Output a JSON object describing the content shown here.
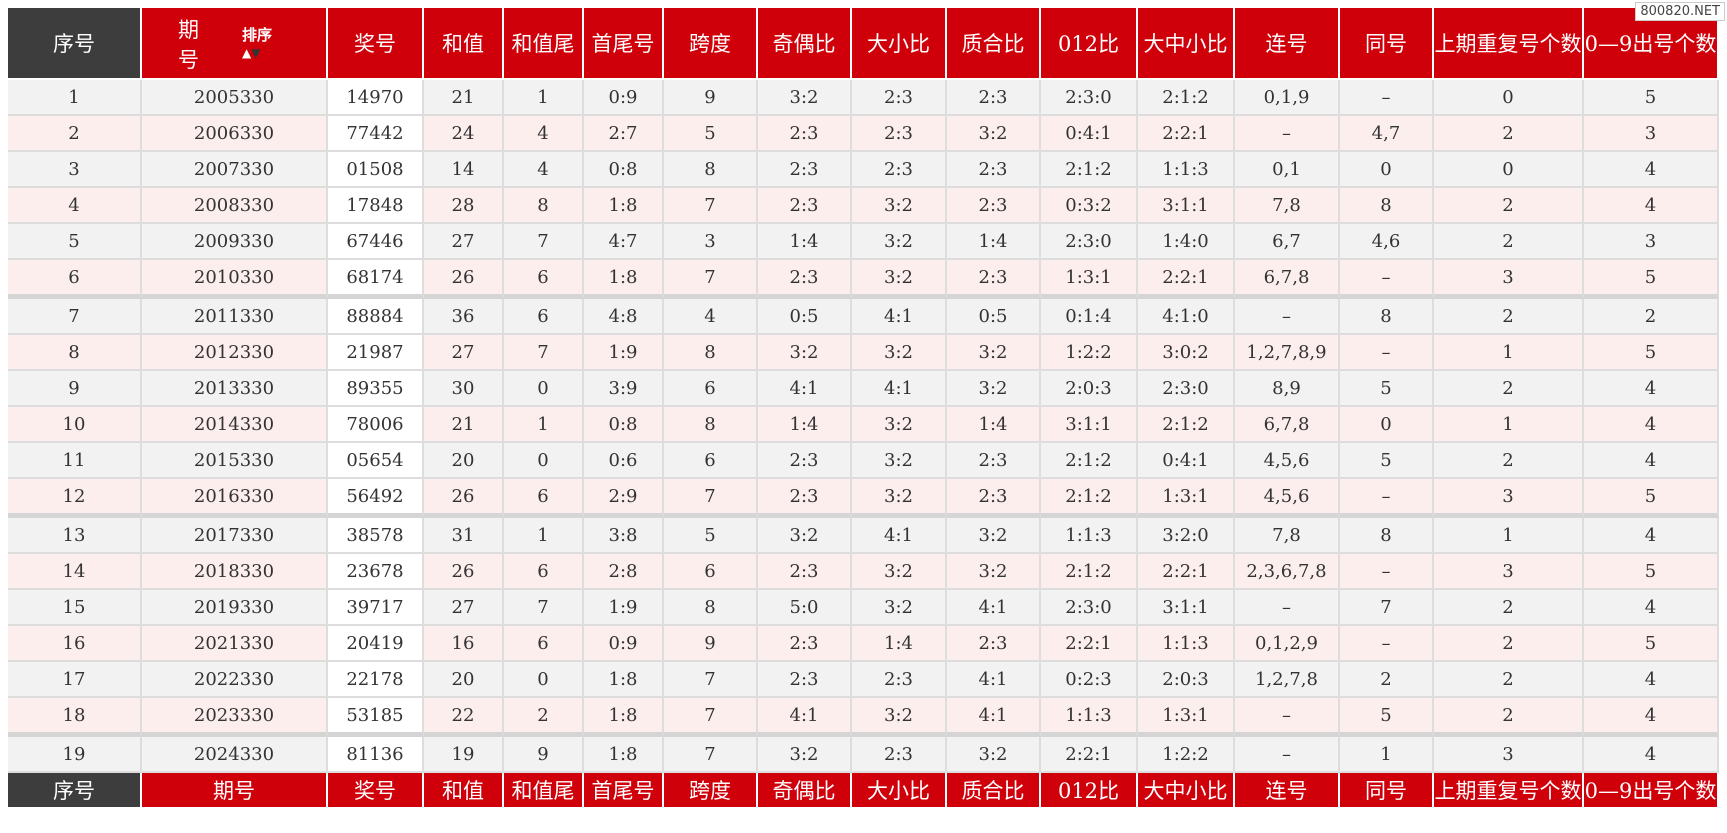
{
  "watermark": "800820.NET",
  "header": {
    "index": "序号",
    "period_line1": "期",
    "period_line2": "号",
    "sort_label": "排序",
    "sort_up": "▲",
    "sort_down": "▼",
    "prize": "奖号",
    "sum": "和值",
    "sum_tail": "和值尾",
    "first_last": "首尾号",
    "span": "跨度",
    "odd_even": "奇偶比",
    "big_small": "大小比",
    "prime_composite": "质合比",
    "r012": "012比",
    "big_mid_small": "大中小比",
    "consecutive": "连号",
    "same": "同号",
    "repeat_prev": "上期重复号个数",
    "zero_nine": "0—9出号个数"
  },
  "footer": {
    "index": "序号",
    "period": "期号",
    "prize": "奖号",
    "sum": "和值",
    "sum_tail": "和值尾",
    "first_last": "首尾号",
    "span": "跨度",
    "odd_even": "奇偶比",
    "big_small": "大小比",
    "prime_composite": "质合比",
    "r012": "012比",
    "big_mid_small": "大中小比",
    "consecutive": "连号",
    "same": "同号",
    "repeat_prev": "上期重复号个数",
    "zero_nine": "0—9出号个数"
  },
  "rows": [
    [
      "1",
      "2005330",
      "14970",
      "21",
      "1",
      "0:9",
      "9",
      "3:2",
      "2:3",
      "2:3",
      "2:3:0",
      "2:1:2",
      "0,1,9",
      "–",
      "0",
      "5"
    ],
    [
      "2",
      "2006330",
      "77442",
      "24",
      "4",
      "2:7",
      "5",
      "2:3",
      "2:3",
      "3:2",
      "0:4:1",
      "2:2:1",
      "–",
      "4,7",
      "2",
      "3"
    ],
    [
      "3",
      "2007330",
      "01508",
      "14",
      "4",
      "0:8",
      "8",
      "2:3",
      "2:3",
      "2:3",
      "2:1:2",
      "1:1:3",
      "0,1",
      "0",
      "0",
      "4"
    ],
    [
      "4",
      "2008330",
      "17848",
      "28",
      "8",
      "1:8",
      "7",
      "2:3",
      "3:2",
      "2:3",
      "0:3:2",
      "3:1:1",
      "7,8",
      "8",
      "2",
      "4"
    ],
    [
      "5",
      "2009330",
      "67446",
      "27",
      "7",
      "4:7",
      "3",
      "1:4",
      "3:2",
      "1:4",
      "2:3:0",
      "1:4:0",
      "6,7",
      "4,6",
      "2",
      "3"
    ],
    [
      "6",
      "2010330",
      "68174",
      "26",
      "6",
      "1:8",
      "7",
      "2:3",
      "3:2",
      "2:3",
      "1:3:1",
      "2:2:1",
      "6,7,8",
      "–",
      "3",
      "5"
    ],
    [
      "7",
      "2011330",
      "88884",
      "36",
      "6",
      "4:8",
      "4",
      "0:5",
      "4:1",
      "0:5",
      "0:1:4",
      "4:1:0",
      "–",
      "8",
      "2",
      "2"
    ],
    [
      "8",
      "2012330",
      "21987",
      "27",
      "7",
      "1:9",
      "8",
      "3:2",
      "3:2",
      "3:2",
      "1:2:2",
      "3:0:2",
      "1,2,7,8,9",
      "–",
      "1",
      "5"
    ],
    [
      "9",
      "2013330",
      "89355",
      "30",
      "0",
      "3:9",
      "6",
      "4:1",
      "4:1",
      "3:2",
      "2:0:3",
      "2:3:0",
      "8,9",
      "5",
      "2",
      "4"
    ],
    [
      "10",
      "2014330",
      "78006",
      "21",
      "1",
      "0:8",
      "8",
      "1:4",
      "3:2",
      "1:4",
      "3:1:1",
      "2:1:2",
      "6,7,8",
      "0",
      "1",
      "4"
    ],
    [
      "11",
      "2015330",
      "05654",
      "20",
      "0",
      "0:6",
      "6",
      "2:3",
      "3:2",
      "2:3",
      "2:1:2",
      "0:4:1",
      "4,5,6",
      "5",
      "2",
      "4"
    ],
    [
      "12",
      "2016330",
      "56492",
      "26",
      "6",
      "2:9",
      "7",
      "2:3",
      "3:2",
      "2:3",
      "2:1:2",
      "1:3:1",
      "4,5,6",
      "–",
      "3",
      "5"
    ],
    [
      "13",
      "2017330",
      "38578",
      "31",
      "1",
      "3:8",
      "5",
      "3:2",
      "4:1",
      "3:2",
      "1:1:3",
      "3:2:0",
      "7,8",
      "8",
      "1",
      "4"
    ],
    [
      "14",
      "2018330",
      "23678",
      "26",
      "6",
      "2:8",
      "6",
      "2:3",
      "3:2",
      "3:2",
      "2:1:2",
      "2:2:1",
      "2,3,6,7,8",
      "–",
      "3",
      "5"
    ],
    [
      "15",
      "2019330",
      "39717",
      "27",
      "7",
      "1:9",
      "8",
      "5:0",
      "3:2",
      "4:1",
      "2:3:0",
      "3:1:1",
      "–",
      "7",
      "2",
      "4"
    ],
    [
      "16",
      "2021330",
      "20419",
      "16",
      "6",
      "0:9",
      "9",
      "2:3",
      "1:4",
      "2:3",
      "2:2:1",
      "1:1:3",
      "0,1,2,9",
      "–",
      "2",
      "5"
    ],
    [
      "17",
      "2022330",
      "22178",
      "20",
      "0",
      "1:8",
      "7",
      "2:3",
      "2:3",
      "4:1",
      "0:2:3",
      "2:0:3",
      "1,2,7,8",
      "2",
      "2",
      "4"
    ],
    [
      "18",
      "2023330",
      "53185",
      "22",
      "2",
      "1:8",
      "7",
      "4:1",
      "3:2",
      "4:1",
      "1:1:3",
      "1:3:1",
      "–",
      "5",
      "2",
      "4"
    ],
    [
      "19",
      "2024330",
      "81136",
      "19",
      "9",
      "1:8",
      "7",
      "3:2",
      "2:3",
      "3:2",
      "2:2:1",
      "1:2:2",
      "–",
      "1",
      "3",
      "4"
    ]
  ]
}
